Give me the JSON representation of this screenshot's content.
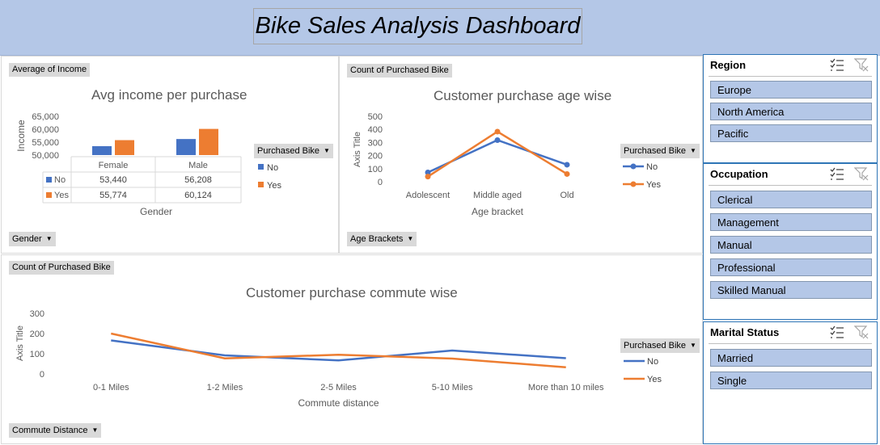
{
  "dashboard_title": "Bike Sales Analysis Dashboard",
  "colors": {
    "no": "#4472c4",
    "yes": "#ed7d31",
    "banner": "#b4c7e7",
    "slicer_item": "#b4c7e7"
  },
  "chart_data": [
    {
      "type": "bar",
      "title": "Avg income per purchase",
      "value_button": "Average of Income",
      "axis_button": "Gender",
      "legend_title": "Purchased Bike",
      "ylabel": "Income",
      "xlabel": "Gender",
      "ylim": [
        50000,
        65000
      ],
      "yticks": [
        "65,000",
        "60,000",
        "55,000",
        "50,000"
      ],
      "categories": [
        "Female",
        "Male"
      ],
      "series": [
        {
          "name": "No",
          "values": [
            53440,
            56208
          ],
          "labels": [
            "53,440",
            "56,208"
          ]
        },
        {
          "name": "Yes",
          "values": [
            55774,
            60124
          ],
          "labels": [
            "55,774",
            "60,124"
          ]
        }
      ]
    },
    {
      "type": "line",
      "title": "Customer purchase age wise",
      "value_button": "Count of Purchased Bike",
      "axis_button": "Age Brackets",
      "legend_title": "Purchased Bike",
      "ylabel": "Axis Title",
      "xlabel": "Age bracket",
      "ylim": [
        0,
        500
      ],
      "yticks": [
        "500",
        "400",
        "300",
        "200",
        "100",
        "0"
      ],
      "categories": [
        "Adolescent",
        "Middle aged",
        "Old"
      ],
      "series": [
        {
          "name": "No",
          "values": [
            71,
            318,
            130
          ]
        },
        {
          "name": "Yes",
          "values": [
            39,
            383,
            59
          ]
        }
      ]
    },
    {
      "type": "line",
      "title": "Customer purchase commute wise",
      "value_button": "Count of Purchased Bike",
      "axis_button": "Commute Distance",
      "legend_title": "Purchased Bike",
      "ylabel": "Axis Title",
      "xlabel": "Commute distance",
      "ylim": [
        0,
        300
      ],
      "yticks": [
        "300",
        "200",
        "100",
        "0"
      ],
      "categories": [
        "0-1 Miles",
        "1-2 Miles",
        "2-5 Miles",
        "5-10 Miles",
        "More than 10 miles"
      ],
      "series": [
        {
          "name": "No",
          "values": [
            166,
            92,
            67,
            116,
            78
          ]
        },
        {
          "name": "Yes",
          "values": [
            200,
            77,
            95,
            76,
            33
          ]
        }
      ]
    }
  ],
  "slicers": [
    {
      "title": "Region",
      "items": [
        "Europe",
        "North America",
        "Pacific"
      ]
    },
    {
      "title": "Occupation",
      "items": [
        "Clerical",
        "Management",
        "Manual",
        "Professional",
        "Skilled Manual"
      ]
    },
    {
      "title": "Marital Status",
      "items": [
        "Married",
        "Single"
      ]
    }
  ]
}
